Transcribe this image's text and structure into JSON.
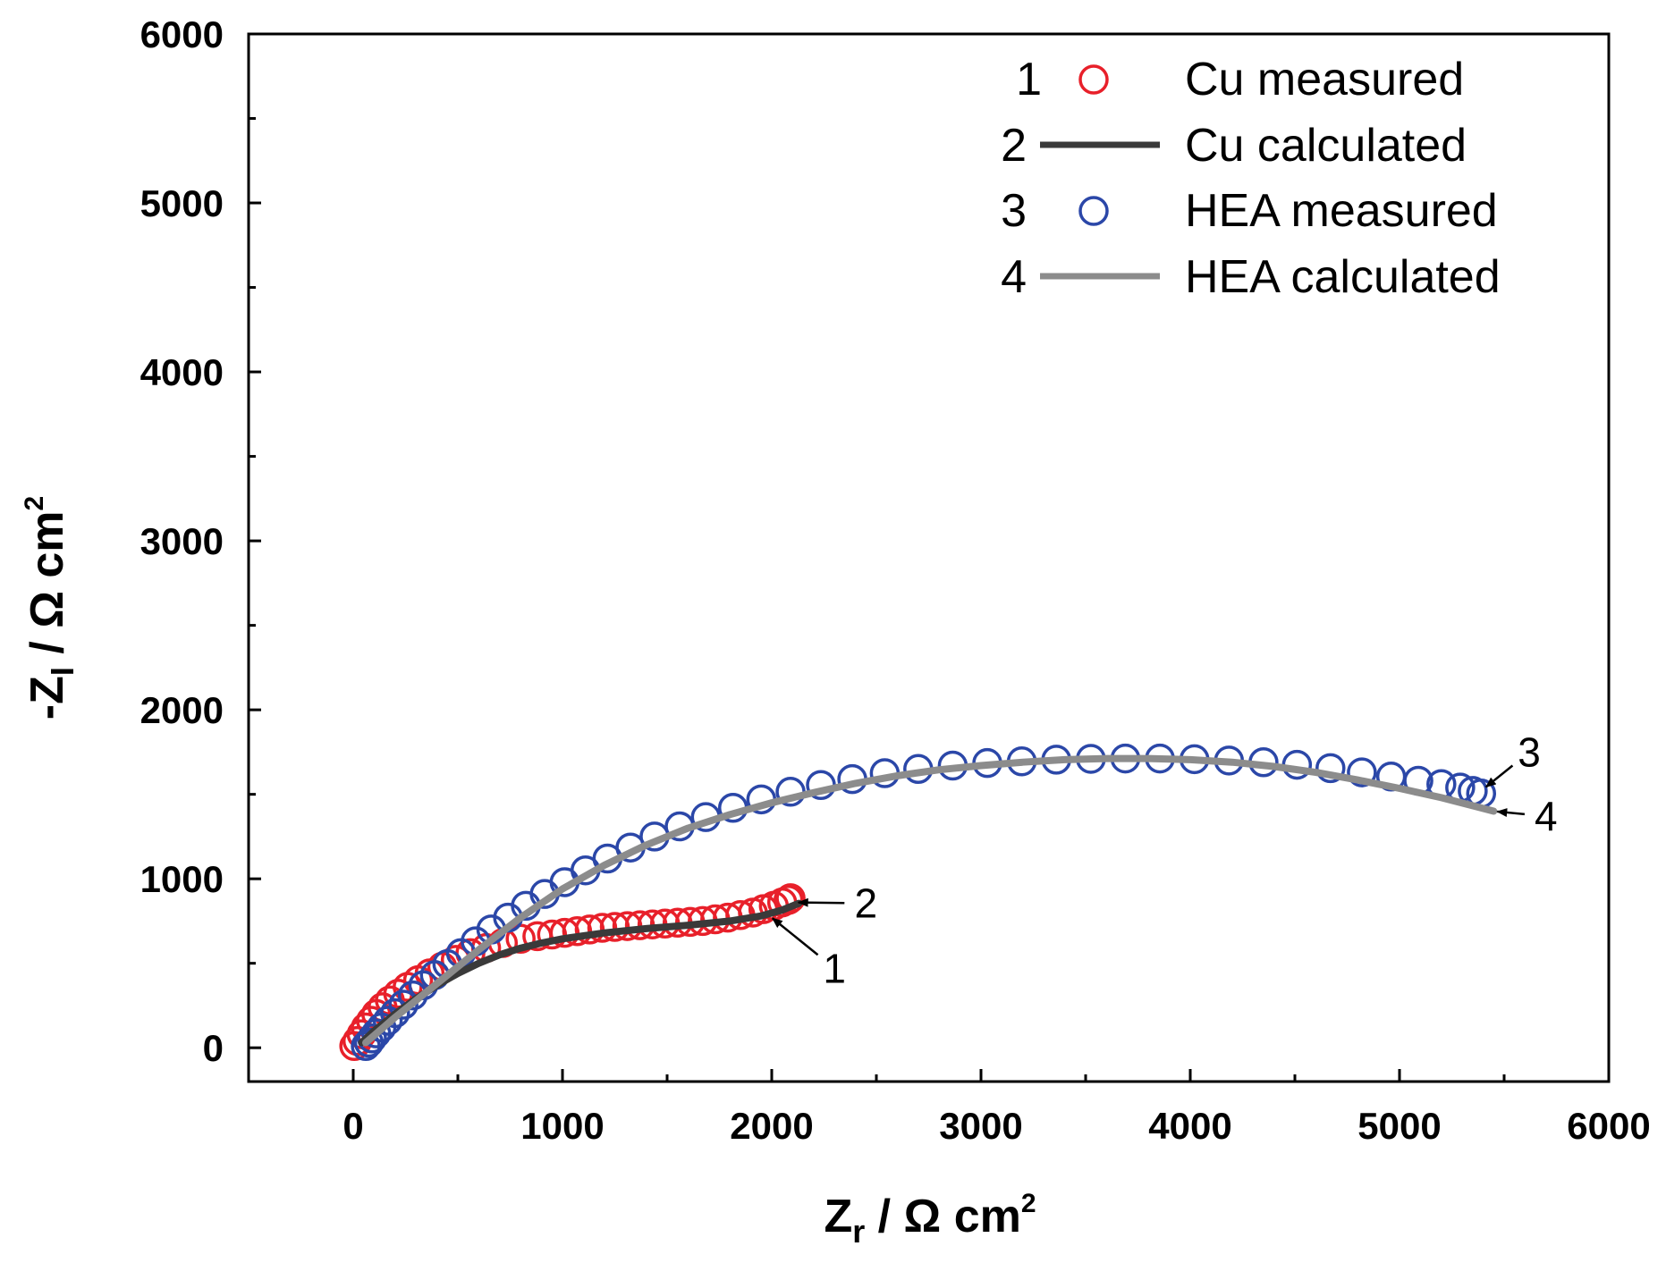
{
  "chart_data": {
    "type": "scatter",
    "title": "",
    "xlabel": {
      "main": "Z",
      "sub": "r",
      "unit": " / Ω cm",
      "sup": "2"
    },
    "ylabel": {
      "main": "-Z",
      "sub": "I",
      "unit": " / Ω cm",
      "sup": "2"
    },
    "xlim": [
      -500,
      6000
    ],
    "ylim": [
      -200,
      6000
    ],
    "xticks": [
      0,
      1000,
      2000,
      3000,
      4000,
      5000,
      6000
    ],
    "yticks": [
      0,
      1000,
      2000,
      3000,
      4000,
      5000,
      6000
    ],
    "xtick_labels": [
      "0",
      "1000",
      "2000",
      "3000",
      "4000",
      "5000",
      "6000"
    ],
    "ytick_labels": [
      "0",
      "1000",
      "2000",
      "3000",
      "4000",
      "5000",
      "6000"
    ],
    "legend_position": "top-right",
    "legend": [
      {
        "num": "1",
        "label": "Cu measured",
        "marker": "circle",
        "color": "#e8202a"
      },
      {
        "num": "2",
        "label": "Cu calculated",
        "marker": "line",
        "color": "#3a3a3a"
      },
      {
        "num": "3",
        "label": "HEA measured",
        "marker": "circle",
        "color": "#2b47a8"
      },
      {
        "num": "4",
        "label": "HEA calculated",
        "marker": "line",
        "color": "#8c8c8c"
      }
    ],
    "series": [
      {
        "name": "Cu measured",
        "kind": "markers",
        "color": "#e8202a",
        "x": [
          5,
          20,
          40,
          60,
          85,
          110,
          140,
          175,
          215,
          260,
          310,
          365,
          425,
          490,
          560,
          635,
          715,
          800,
          880,
          950,
          1010,
          1070,
          1130,
          1190,
          1250,
          1310,
          1370,
          1430,
          1490,
          1550,
          1610,
          1670,
          1730,
          1790,
          1850,
          1910,
          1960,
          2010,
          2050,
          2080,
          2090
        ],
        "y": [
          10,
          40,
          80,
          120,
          160,
          200,
          240,
          280,
          320,
          360,
          400,
          440,
          480,
          520,
          560,
          590,
          620,
          645,
          660,
          670,
          680,
          690,
          700,
          710,
          715,
          720,
          725,
          730,
          735,
          740,
          745,
          750,
          760,
          770,
          785,
          800,
          820,
          840,
          860,
          875,
          885
        ]
      },
      {
        "name": "Cu calculated",
        "kind": "line",
        "color": "#3a3a3a",
        "x": [
          40,
          100,
          200,
          300,
          400,
          500,
          600,
          700,
          800,
          900,
          1000,
          1200,
          1400,
          1600,
          1800,
          1950,
          2050,
          2130
        ],
        "y": [
          30,
          100,
          200,
          290,
          370,
          440,
          500,
          550,
          590,
          620,
          645,
          680,
          705,
          725,
          750,
          780,
          815,
          855
        ]
      },
      {
        "name": "HEA measured",
        "kind": "markers",
        "color": "#2b47a8",
        "x": [
          60,
          75,
          90,
          110,
          135,
          165,
          200,
          240,
          285,
          335,
          390,
          450,
          515,
          585,
          660,
          740,
          825,
          915,
          1010,
          1110,
          1215,
          1325,
          1440,
          1560,
          1685,
          1815,
          1950,
          2090,
          2235,
          2385,
          2540,
          2700,
          2865,
          3030,
          3195,
          3360,
          3525,
          3690,
          3855,
          4020,
          4185,
          4350,
          4510,
          4670,
          4820,
          4960,
          5090,
          5200,
          5290,
          5350,
          5390
        ],
        "y": [
          10,
          30,
          55,
          85,
          120,
          160,
          205,
          255,
          310,
          370,
          430,
          495,
          560,
          630,
          700,
          770,
          840,
          910,
          980,
          1050,
          1120,
          1185,
          1250,
          1310,
          1365,
          1420,
          1470,
          1515,
          1555,
          1590,
          1625,
          1650,
          1670,
          1685,
          1695,
          1705,
          1710,
          1712,
          1712,
          1708,
          1700,
          1690,
          1675,
          1655,
          1630,
          1605,
          1580,
          1560,
          1540,
          1520,
          1505
        ]
      },
      {
        "name": "HEA calculated",
        "kind": "line",
        "color": "#8c8c8c",
        "x": [
          60,
          200,
          400,
          600,
          800,
          1000,
          1200,
          1400,
          1600,
          1800,
          2000,
          2200,
          2400,
          2600,
          2800,
          3000,
          3200,
          3400,
          3600,
          3800,
          4000,
          4200,
          4400,
          4600,
          4800,
          5000,
          5200,
          5450
        ],
        "y": [
          30,
          180,
          380,
          580,
          770,
          940,
          1080,
          1200,
          1300,
          1380,
          1450,
          1510,
          1565,
          1610,
          1645,
          1670,
          1690,
          1705,
          1712,
          1712,
          1705,
          1690,
          1665,
          1630,
          1585,
          1535,
          1480,
          1400
        ]
      }
    ],
    "annotations": [
      {
        "label": "1",
        "tip": [
          1990,
          780
        ],
        "text_at": [
          2300,
          470
        ]
      },
      {
        "label": "2",
        "tip": [
          2110,
          860
        ],
        "text_at": [
          2450,
          855
        ]
      },
      {
        "label": "3",
        "tip": [
          5400,
          1530
        ],
        "text_at": [
          5620,
          1750
        ]
      },
      {
        "label": "4",
        "tip": [
          5450,
          1400
        ],
        "text_at": [
          5700,
          1370
        ]
      }
    ]
  }
}
